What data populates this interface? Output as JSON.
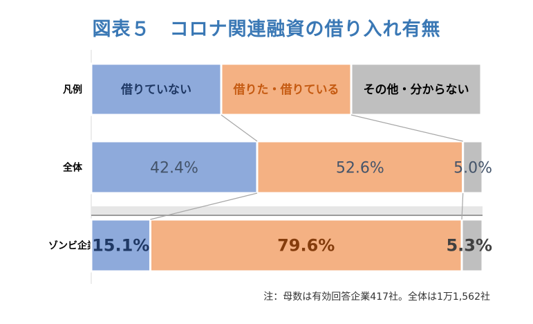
{
  "title": "図表５　コロナ関連融資の借り入れ有無",
  "note": "注：母数は有効回答企業417社。全体は1万1,562社",
  "colors": {
    "not_borrowed": "#8eaadb",
    "borrowed": "#f4b183",
    "other": "#bfbfbf",
    "title": "#3a78b5"
  },
  "chart_data": {
    "type": "bar",
    "stacked": true,
    "orientation": "horizontal",
    "xlim": [
      0,
      100
    ],
    "legend_row_label": "凡例",
    "legend": [
      "借りていない",
      "借りた・借りている",
      "その他・分からない"
    ],
    "categories": [
      "全体",
      "ゾンビ企業"
    ],
    "series": [
      {
        "name": "借りていない",
        "values": [
          42.4,
          15.1
        ],
        "labels": [
          "42.4%",
          "15.1%"
        ]
      },
      {
        "name": "借りた・借りている",
        "values": [
          52.6,
          79.6
        ],
        "labels": [
          "52.6%",
          "79.6%"
        ]
      },
      {
        "name": "その他・分からない",
        "values": [
          5.0,
          5.3
        ],
        "labels": [
          "5.0%",
          "5.3%"
        ]
      }
    ]
  }
}
